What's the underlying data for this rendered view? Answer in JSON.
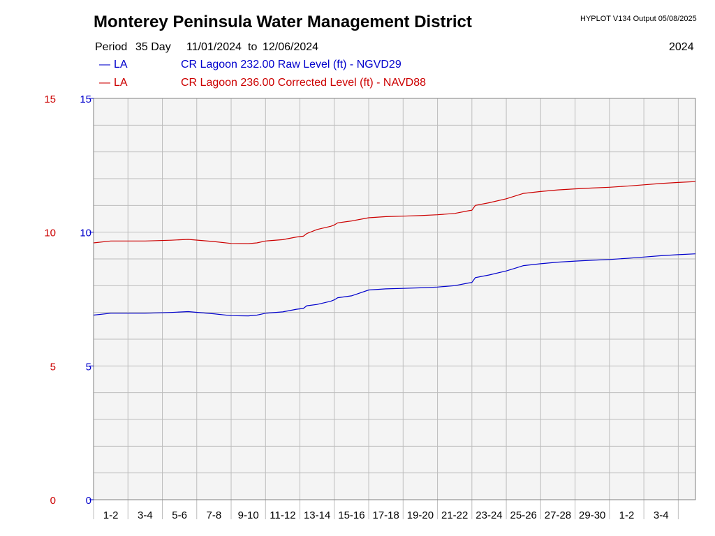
{
  "header": {
    "title": "Monterey Peninsula Water Management District",
    "software": "HYPLOT V134  Output 05/08/2025",
    "year": "2024",
    "period_label": "Period",
    "period_length": "35 Day",
    "start_date": "11/01/2024",
    "to_label": "to",
    "end_date": "12/06/2024"
  },
  "legend": [
    {
      "marker": "—",
      "code": "LA",
      "description": "CR Lagoon  232.00 Raw Level (ft) - NGVD29",
      "color": "#0000cc"
    },
    {
      "marker": "—",
      "code": "LA",
      "description": "CR Lagoon  236.00 Corrected Level (ft) - NAVD88",
      "color": "#cc0000"
    }
  ],
  "chart_data": {
    "type": "line",
    "grid": true,
    "background": "#f4f4f4",
    "x_range_days": [
      0,
      35
    ],
    "x_tick_labels": [
      "1-2",
      "3-4",
      "5-6",
      "7-8",
      "9-10",
      "11-12",
      "13-14",
      "15-16",
      "17-18",
      "19-20",
      "21-22",
      "23-24",
      "25-26",
      "27-28",
      "29-30",
      "1-2",
      "3-4"
    ],
    "left_axis": {
      "ylim": [
        0,
        15
      ],
      "tick_labels": [
        "0",
        "5",
        "10",
        "15"
      ],
      "color": "#cc0000"
    },
    "inner_axis": {
      "ylim": [
        0,
        15
      ],
      "tick_labels": [
        "0",
        "5",
        "10",
        "15"
      ],
      "color": "#0000cc"
    },
    "series": [
      {
        "name": "CR Lagoon  232.00 Raw Level (ft) - NGVD29",
        "color": "#0000cc",
        "x": [
          0,
          1,
          3,
          4.5,
          5.5,
          7,
          8,
          9,
          9.5,
          10,
          11,
          11.8,
          12.2,
          12.4,
          13,
          13.8,
          14,
          14.2,
          15,
          16,
          17,
          18,
          19,
          20,
          21,
          21.8,
          22,
          22.2,
          23,
          24,
          24.5,
          25,
          26,
          27,
          28,
          29,
          30,
          31,
          32,
          33,
          34,
          35
        ],
        "y": [
          6.9,
          6.97,
          6.97,
          7.0,
          7.03,
          6.95,
          6.88,
          6.87,
          6.9,
          6.97,
          7.02,
          7.12,
          7.15,
          7.25,
          7.3,
          7.42,
          7.47,
          7.55,
          7.62,
          7.84,
          7.88,
          7.9,
          7.92,
          7.95,
          8.0,
          8.1,
          8.12,
          8.3,
          8.4,
          8.55,
          8.65,
          8.75,
          8.82,
          8.88,
          8.92,
          8.95,
          8.98,
          9.02,
          9.07,
          9.12,
          9.16,
          9.19
        ]
      },
      {
        "name": "CR Lagoon  236.00 Corrected Level (ft) - NAVD88",
        "color": "#cc0000",
        "x": [
          0,
          1,
          3,
          4.5,
          5.5,
          7,
          8,
          9,
          9.5,
          10,
          11,
          11.8,
          12.2,
          12.4,
          13,
          13.8,
          14,
          14.2,
          15,
          16,
          17,
          18,
          19,
          20,
          21,
          21.8,
          22,
          22.2,
          23,
          24,
          24.5,
          25,
          26,
          27,
          28,
          29,
          30,
          31,
          32,
          33,
          34,
          35
        ],
        "y": [
          9.6,
          9.67,
          9.67,
          9.7,
          9.73,
          9.65,
          9.58,
          9.57,
          9.6,
          9.67,
          9.72,
          9.82,
          9.85,
          9.95,
          10.1,
          10.22,
          10.27,
          10.35,
          10.42,
          10.54,
          10.58,
          10.6,
          10.62,
          10.65,
          10.7,
          10.8,
          10.82,
          11.0,
          11.1,
          11.25,
          11.35,
          11.45,
          11.52,
          11.58,
          11.62,
          11.65,
          11.68,
          11.72,
          11.77,
          11.82,
          11.86,
          11.89
        ]
      }
    ]
  }
}
